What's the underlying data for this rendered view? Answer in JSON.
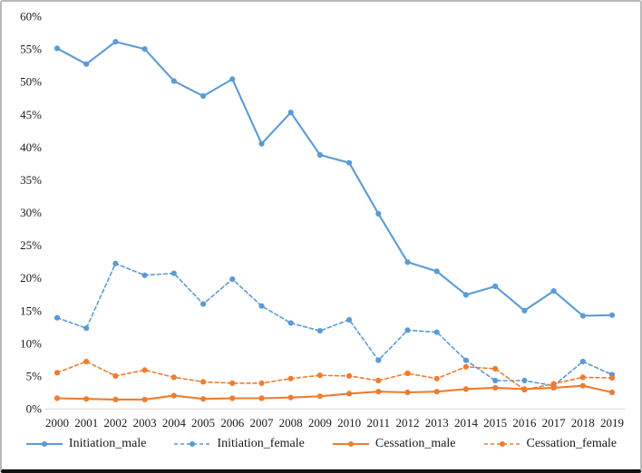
{
  "chart_data": {
    "type": "line",
    "title": "",
    "xlabel": "",
    "ylabel": "",
    "x": [
      "2000",
      "2001",
      "2002",
      "2003",
      "2004",
      "2005",
      "2006",
      "2007",
      "2008",
      "2009",
      "2010",
      "2011",
      "2012",
      "2013",
      "2014",
      "2015",
      "2016",
      "2017",
      "2018",
      "2019"
    ],
    "y_axis": {
      "min": 0,
      "max": 60,
      "step": 5,
      "ticks": [
        "0%",
        "5%",
        "10%",
        "15%",
        "20%",
        "25%",
        "30%",
        "35%",
        "40%",
        "45%",
        "50%",
        "55%",
        "60%"
      ]
    },
    "grid": false,
    "legend_position": "bottom",
    "axis_line_color": "#d9d9d9",
    "text_color": "#1a1a1a",
    "series": [
      {
        "name": "Initiation_male",
        "color": "#5B9BD5",
        "dash": "solid",
        "values": [
          55.1,
          52.7,
          56.1,
          55.0,
          50.1,
          47.8,
          50.4,
          40.5,
          45.3,
          38.8,
          37.6,
          29.8,
          22.4,
          21.0,
          17.4,
          18.7,
          15.0,
          18.0,
          14.2,
          14.3
        ]
      },
      {
        "name": "Initiation_female",
        "color": "#5B9BD5",
        "dash": "dashed",
        "values": [
          13.9,
          12.3,
          22.2,
          20.4,
          20.7,
          16.0,
          19.8,
          15.7,
          13.1,
          11.9,
          13.6,
          7.4,
          12.0,
          11.7,
          7.4,
          4.3,
          4.3,
          3.5,
          7.2,
          5.2
        ]
      },
      {
        "name": "Cessation_male",
        "color": "#ED7D31",
        "dash": "solid",
        "values": [
          1.6,
          1.5,
          1.4,
          1.4,
          2.0,
          1.5,
          1.6,
          1.6,
          1.7,
          1.9,
          2.3,
          2.6,
          2.5,
          2.6,
          3.0,
          3.2,
          3.0,
          3.2,
          3.5,
          2.5
        ]
      },
      {
        "name": "Cessation_female",
        "color": "#ED7D31",
        "dash": "dashed",
        "values": [
          5.5,
          7.2,
          5.0,
          5.9,
          4.8,
          4.1,
          3.9,
          3.9,
          4.6,
          5.1,
          5.0,
          4.3,
          5.4,
          4.6,
          6.4,
          6.1,
          2.9,
          3.8,
          4.8,
          4.7
        ]
      }
    ]
  }
}
